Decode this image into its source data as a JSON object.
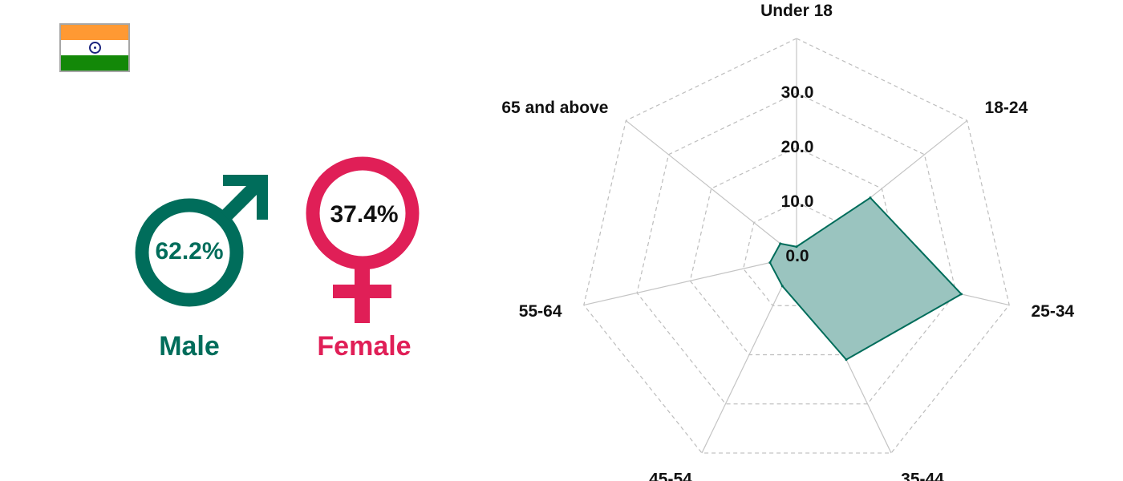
{
  "flag": {
    "icon": "india-flag-icon",
    "colors": [
      "#ff9933",
      "#ffffff",
      "#138808"
    ],
    "wheel_color": "#1a237e"
  },
  "gender": {
    "male": {
      "label": "Male",
      "percent": "62.2%",
      "icon": "male-symbol-icon",
      "color": "#006d5b"
    },
    "female": {
      "label": "Female",
      "percent": "37.4%",
      "icon": "female-symbol-icon",
      "color": "#e01f57"
    }
  },
  "chart_data": {
    "type": "radar",
    "categories": [
      "Under 18",
      "18-24",
      "25-34",
      "35-44",
      "45-54",
      "55-64",
      "65 and above"
    ],
    "series": [
      {
        "values": [
          1.8,
          17.3,
          31.0,
          21.0,
          6.0,
          5.0,
          3.8
        ],
        "fill": "#9ac4bf",
        "stroke": "#006d5b"
      }
    ],
    "rlim": [
      0,
      40
    ],
    "ticks": [
      0,
      10,
      20,
      30
    ],
    "tick_labels": [
      "0.0",
      "10.0",
      "20.0",
      "30.0"
    ],
    "grid": true
  }
}
